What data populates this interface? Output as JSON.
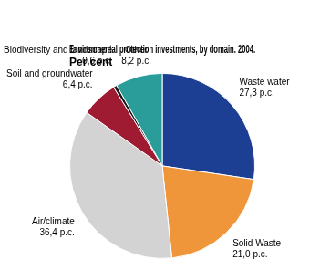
{
  "chart_data": {
    "type": "pie",
    "title": "Environmental protection investments, by domain. 2004.",
    "subtitle": "Per cent",
    "categories": [
      "Waste water",
      "Solid Waste",
      "Air/climate",
      "Soil and groundwater",
      "Biodiversity and landscape",
      "Other"
    ],
    "values": [
      27.3,
      21.0,
      36.4,
      6.4,
      0.6,
      8.2
    ],
    "value_labels": [
      "27,3 p.c.",
      "21,0 p.c.",
      "36,4 p.c.",
      "6,4 p.c.",
      "0,6 p.c.",
      "8,2 p.c."
    ],
    "colors": [
      "#1c3f94",
      "#f0963a",
      "#d3d3d3",
      "#9e1b32",
      "#1a1a1a",
      "#2a9d9b"
    ],
    "data_labels": true
  }
}
